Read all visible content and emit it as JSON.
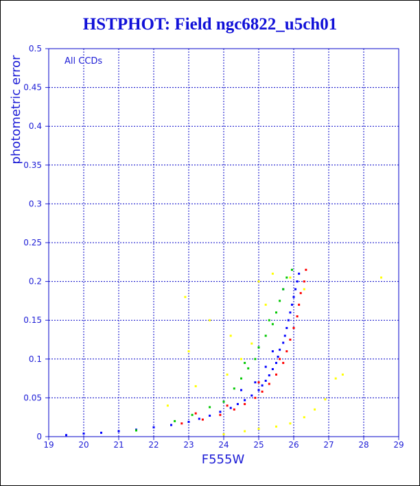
{
  "chart_data": {
    "type": "scatter",
    "title": "HSTPHOT: Field ngc6822_u5ch01",
    "xlabel": "F555W",
    "ylabel": "photometric error",
    "annotation": "All CCDs",
    "xlim": [
      19,
      29
    ],
    "ylim": [
      0,
      0.5
    ],
    "x_ticks": [
      "19",
      "20",
      "21",
      "22",
      "23",
      "24",
      "25",
      "26",
      "27",
      "28",
      "29"
    ],
    "y_ticks": [
      "0",
      "0.05",
      "0.1",
      "0.15",
      "0.2",
      "0.25",
      "0.3",
      "0.35",
      "0.4",
      "0.45",
      "0.5"
    ],
    "grid": true,
    "colors": {
      "title": "#1010d8",
      "axes": "#1c1cd6",
      "grid": "#0000c8",
      "frame": "#000000"
    },
    "series": [
      {
        "color": "#ff0000",
        "points": [
          [
            22.8,
            0.017
          ],
          [
            23.4,
            0.022
          ],
          [
            23.9,
            0.028
          ],
          [
            24.3,
            0.035
          ],
          [
            24.6,
            0.042
          ],
          [
            24.9,
            0.05
          ],
          [
            25.1,
            0.058
          ],
          [
            25.3,
            0.068
          ],
          [
            25.5,
            0.08
          ],
          [
            25.7,
            0.095
          ],
          [
            25.8,
            0.11
          ],
          [
            25.9,
            0.125
          ],
          [
            26.0,
            0.14
          ],
          [
            26.1,
            0.155
          ],
          [
            26.15,
            0.17
          ],
          [
            26.2,
            0.185
          ],
          [
            26.3,
            0.2
          ],
          [
            26.35,
            0.215
          ],
          [
            25.0,
            0.07
          ],
          [
            25.6,
            0.1
          ],
          [
            24.1,
            0.04
          ],
          [
            23.2,
            0.03
          ]
        ]
      },
      {
        "color": "#0000ff",
        "points": [
          [
            19.5,
            0.002
          ],
          [
            20.0,
            0.004
          ],
          [
            20.5,
            0.005
          ],
          [
            21.0,
            0.007
          ],
          [
            21.5,
            0.009
          ],
          [
            22.0,
            0.012
          ],
          [
            22.5,
            0.015
          ],
          [
            23.0,
            0.019
          ],
          [
            23.3,
            0.023
          ],
          [
            23.6,
            0.027
          ],
          [
            23.9,
            0.032
          ],
          [
            24.2,
            0.037
          ],
          [
            24.4,
            0.042
          ],
          [
            24.6,
            0.047
          ],
          [
            24.8,
            0.053
          ],
          [
            25.0,
            0.06
          ],
          [
            25.1,
            0.066
          ],
          [
            25.2,
            0.072
          ],
          [
            25.3,
            0.079
          ],
          [
            25.4,
            0.087
          ],
          [
            25.5,
            0.095
          ],
          [
            25.55,
            0.103
          ],
          [
            25.6,
            0.112
          ],
          [
            25.7,
            0.121
          ],
          [
            25.75,
            0.13
          ],
          [
            25.8,
            0.14
          ],
          [
            25.85,
            0.15
          ],
          [
            25.9,
            0.16
          ],
          [
            25.95,
            0.17
          ],
          [
            26.0,
            0.18
          ],
          [
            26.05,
            0.19
          ],
          [
            26.1,
            0.2
          ],
          [
            26.15,
            0.21
          ],
          [
            24.9,
            0.07
          ],
          [
            25.2,
            0.09
          ],
          [
            25.4,
            0.11
          ],
          [
            24.5,
            0.06
          ],
          [
            25.7,
            0.19
          ]
        ]
      },
      {
        "color": "#00c800",
        "points": [
          [
            23.1,
            0.028
          ],
          [
            23.6,
            0.038
          ],
          [
            24.0,
            0.045
          ],
          [
            24.3,
            0.062
          ],
          [
            24.5,
            0.075
          ],
          [
            24.7,
            0.088
          ],
          [
            24.9,
            0.1
          ],
          [
            25.0,
            0.115
          ],
          [
            25.2,
            0.13
          ],
          [
            25.4,
            0.145
          ],
          [
            25.5,
            0.16
          ],
          [
            25.6,
            0.175
          ],
          [
            25.7,
            0.19
          ],
          [
            25.8,
            0.205
          ],
          [
            25.95,
            0.215
          ],
          [
            24.6,
            0.095
          ],
          [
            25.3,
            0.15
          ],
          [
            22.6,
            0.02
          ],
          [
            21.5,
            0.008
          ]
        ]
      },
      {
        "color": "#ffff00",
        "points": [
          [
            22.9,
            0.18
          ],
          [
            23.6,
            0.15
          ],
          [
            24.2,
            0.13
          ],
          [
            24.5,
            0.1
          ],
          [
            24.8,
            0.12
          ],
          [
            25.0,
            0.2
          ],
          [
            25.2,
            0.17
          ],
          [
            25.4,
            0.21
          ],
          [
            25.9,
            0.205
          ],
          [
            26.3,
            0.19
          ],
          [
            23.2,
            0.065
          ],
          [
            22.4,
            0.04
          ],
          [
            24.0,
            0.003
          ],
          [
            24.6,
            0.007
          ],
          [
            25.0,
            0.01
          ],
          [
            25.5,
            0.013
          ],
          [
            25.9,
            0.017
          ],
          [
            26.3,
            0.025
          ],
          [
            26.6,
            0.035
          ],
          [
            26.9,
            0.048
          ],
          [
            27.2,
            0.075
          ],
          [
            27.4,
            0.08
          ],
          [
            28.5,
            0.205
          ],
          [
            23.0,
            0.11
          ],
          [
            24.1,
            0.08
          ]
        ]
      }
    ]
  }
}
